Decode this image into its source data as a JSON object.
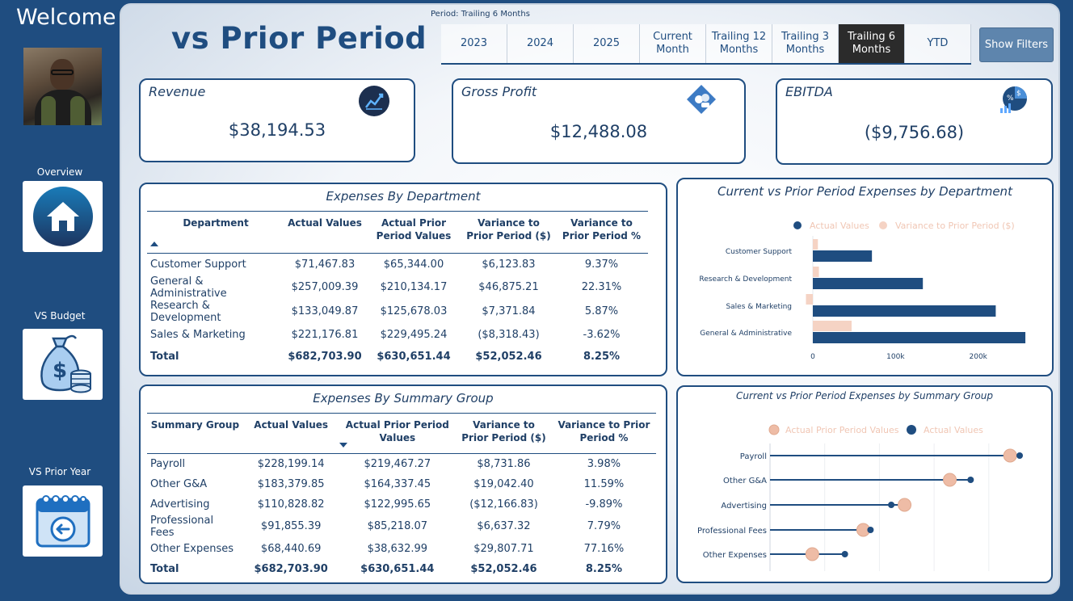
{
  "sidebar": {
    "welcome": "Welcome",
    "nav": [
      {
        "label": "Overview"
      },
      {
        "label": "VS Budget"
      },
      {
        "label": "VS Prior Year"
      }
    ]
  },
  "header": {
    "title": "vs Prior Period",
    "period_label": "Period: Trailing 6 Months",
    "periods": [
      "2023",
      "2024",
      "2025",
      "Current Month",
      "Trailing 12 Months",
      "Trailing 3 Months",
      "Trailing 6 Months",
      "YTD"
    ],
    "active_period": "Trailing 6 Months",
    "show_filters": "Show Filters"
  },
  "kpis": {
    "revenue": {
      "title": "Revenue",
      "value": "$38,194.53"
    },
    "gross_profit": {
      "title": "Gross Profit",
      "value": "$12,488.08"
    },
    "ebitda": {
      "title": "EBITDA",
      "value": "($9,756.68)"
    }
  },
  "dept_table": {
    "title": "Expenses By Department",
    "columns": [
      "Department",
      "Actual Values",
      "Actual Prior Period Values",
      "Variance to Prior Period ($)",
      "Variance to Prior Period %"
    ],
    "rows": [
      [
        "Customer Support",
        "$71,467.83",
        "$65,344.00",
        "$6,123.83",
        "9.37%"
      ],
      [
        "General & Administrative",
        "$257,009.39",
        "$210,134.17",
        "$46,875.21",
        "22.31%"
      ],
      [
        "Research & Development",
        "$133,049.87",
        "$125,678.03",
        "$7,371.84",
        "5.87%"
      ],
      [
        "Sales & Marketing",
        "$221,176.81",
        "$229,495.24",
        "($8,318.43)",
        "-3.62%"
      ]
    ],
    "total": [
      "Total",
      "$682,703.90",
      "$630,651.44",
      "$52,052.46",
      "8.25%"
    ]
  },
  "group_table": {
    "title": "Expenses By Summary Group",
    "columns": [
      "Summary Group",
      "Actual Values",
      "Actual Prior Period Values",
      "Variance to Prior Period ($)",
      "Variance to Prior Period %"
    ],
    "rows": [
      [
        "Payroll",
        "$228,199.14",
        "$219,467.27",
        "$8,731.86",
        "3.98%"
      ],
      [
        "Other G&A",
        "$183,379.85",
        "$164,337.45",
        "$19,042.40",
        "11.59%"
      ],
      [
        "Advertising",
        "$110,828.82",
        "$122,995.65",
        "($12,166.83)",
        "-9.89%"
      ],
      [
        "Professional Fees",
        "$91,855.39",
        "$85,218.07",
        "$6,637.32",
        "7.79%"
      ],
      [
        "Other Expenses",
        "$68,440.69",
        "$38,632.99",
        "$29,807.71",
        "77.16%"
      ]
    ],
    "total": [
      "Total",
      "$682,703.90",
      "$630,651.44",
      "$52,052.46",
      "8.25%"
    ]
  },
  "colors": {
    "navy": "#1f4d80",
    "peach": "#f5d3c4",
    "peach_dark": "#eebca6"
  },
  "chart_data": [
    {
      "type": "bar",
      "title": "Current vs Prior Period Expenses by Department",
      "orientation": "horizontal",
      "categories": [
        "Customer Support",
        "Research & Development",
        "Sales & Marketing",
        "General & Administrative"
      ],
      "series": [
        {
          "name": "Actual Values",
          "values": [
            71467.83,
            133049.87,
            221176.81,
            257009.39
          ]
        },
        {
          "name": "Variance to Prior Period ($)",
          "values": [
            6123.83,
            7371.84,
            -8318.43,
            46875.21
          ]
        }
      ],
      "x_ticks": [
        "0",
        "100k",
        "200k"
      ],
      "xlim": [
        -20000,
        275000
      ],
      "legend": "top"
    },
    {
      "type": "scatter",
      "title": "Current vs Prior Period Expenses by Summary Group",
      "categories": [
        "Payroll",
        "Other G&A",
        "Advertising",
        "Professional Fees",
        "Other Expenses"
      ],
      "series": [
        {
          "name": "Actual Prior Period Values",
          "values": [
            219467.27,
            164337.45,
            122995.65,
            85218.07,
            38632.99
          ]
        },
        {
          "name": "Actual Values",
          "values": [
            228199.14,
            183379.85,
            110828.82,
            91855.39,
            68440.69
          ]
        }
      ],
      "xlim": [
        0,
        240000
      ],
      "grid": true,
      "legend": "top"
    }
  ]
}
